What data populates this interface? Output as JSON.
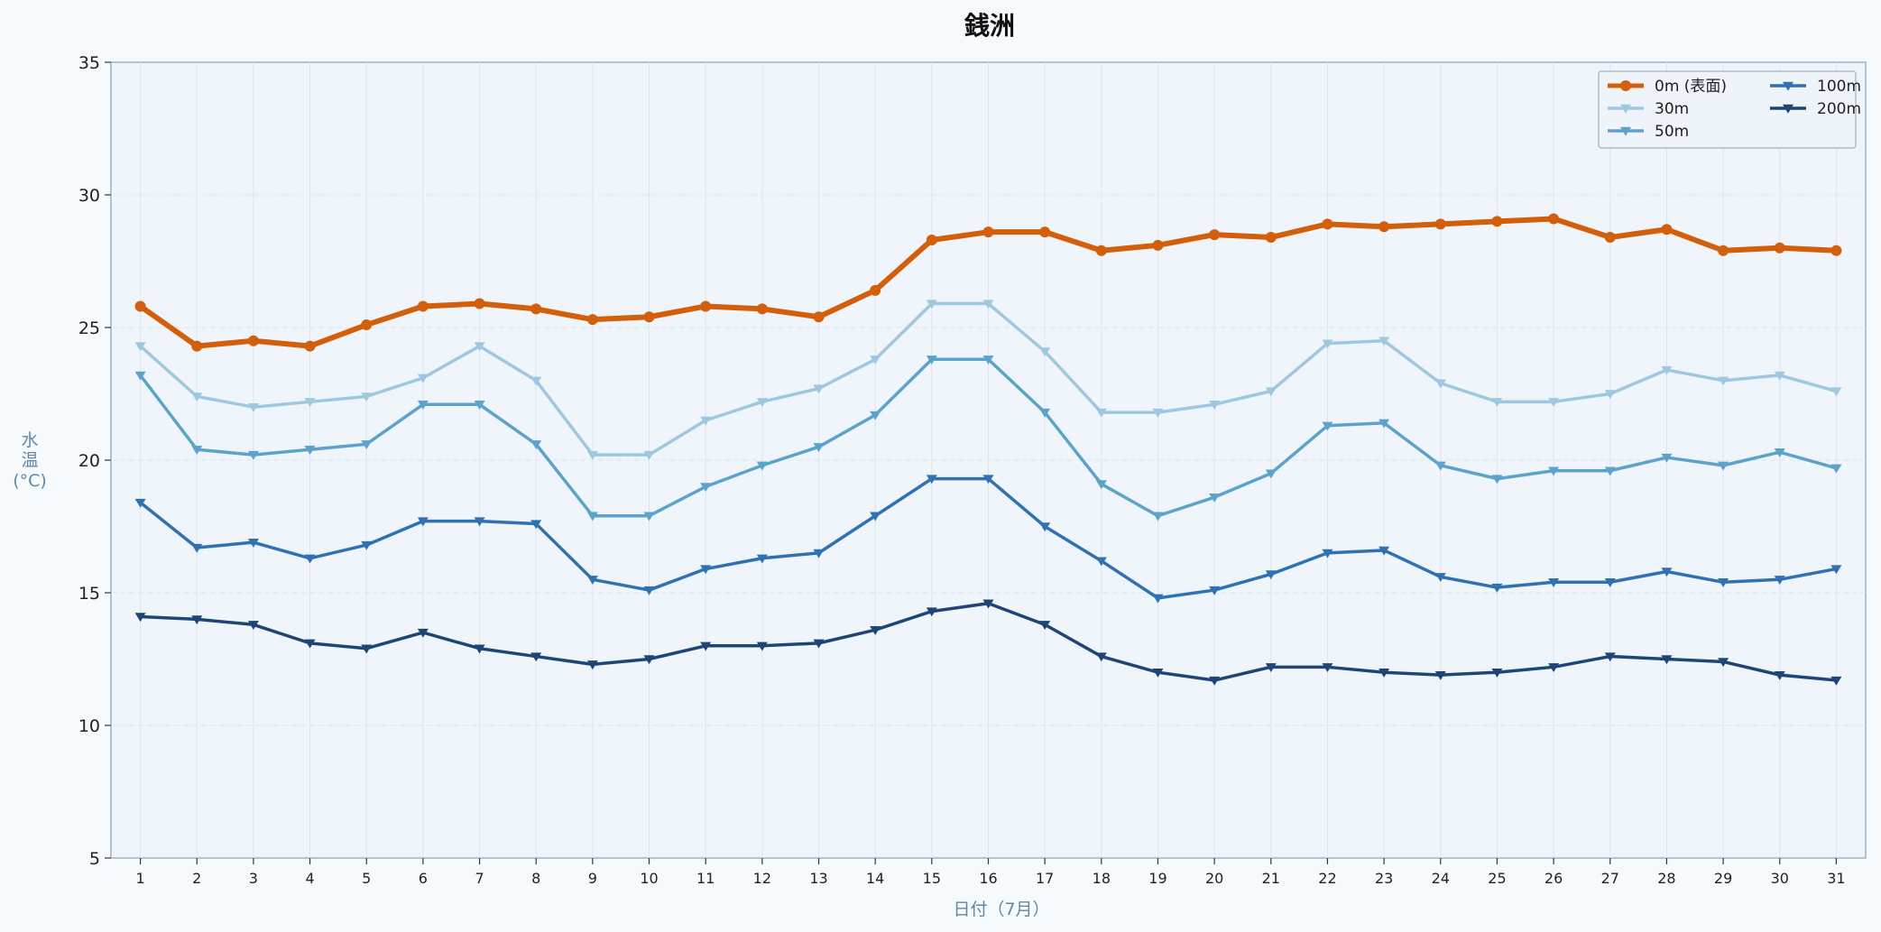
{
  "chart_data": {
    "type": "line",
    "title": "銭洲",
    "xlabel": "日付（7月）",
    "ylabel_lines": [
      "水",
      "温",
      "(°C)"
    ],
    "ylim": [
      5,
      35
    ],
    "yticks": [
      5,
      10,
      15,
      20,
      25,
      30,
      35
    ],
    "x": [
      1,
      2,
      3,
      4,
      5,
      6,
      7,
      8,
      9,
      10,
      11,
      12,
      13,
      14,
      15,
      16,
      17,
      18,
      19,
      20,
      21,
      22,
      23,
      24,
      25,
      26,
      27,
      28,
      29,
      30,
      31
    ],
    "grid": true,
    "legend_position": "top-right",
    "series": [
      {
        "name": "0m (表面)",
        "color": "#d35f0a",
        "marker": "circle",
        "values": [
          25.8,
          24.3,
          24.5,
          24.3,
          25.1,
          25.8,
          25.9,
          25.7,
          25.3,
          25.4,
          25.8,
          25.7,
          25.4,
          26.4,
          28.3,
          28.6,
          28.6,
          27.9,
          28.1,
          28.5,
          28.4,
          28.9,
          28.8,
          28.9,
          29.0,
          29.1,
          28.4,
          28.7,
          27.9,
          28.0,
          27.9
        ]
      },
      {
        "name": "30m",
        "color": "#9ec8e0",
        "marker": "triangle-down",
        "values": [
          24.3,
          22.4,
          22.0,
          22.2,
          22.4,
          23.1,
          24.3,
          23.0,
          20.2,
          20.2,
          21.5,
          22.2,
          22.7,
          23.8,
          25.9,
          25.9,
          24.1,
          21.8,
          21.8,
          22.1,
          22.6,
          24.4,
          24.5,
          22.9,
          22.2,
          22.2,
          22.5,
          23.4,
          23.0,
          23.2,
          22.6
        ]
      },
      {
        "name": "50m",
        "color": "#5ba3cb",
        "marker": "triangle-down",
        "values": [
          23.2,
          20.4,
          20.2,
          20.4,
          20.6,
          22.1,
          22.1,
          20.6,
          17.9,
          17.9,
          19.0,
          19.8,
          20.5,
          21.7,
          23.8,
          23.8,
          21.8,
          19.1,
          17.9,
          18.6,
          19.5,
          21.3,
          21.4,
          19.8,
          19.3,
          19.6,
          19.6,
          20.1,
          19.8,
          20.3,
          19.7
        ]
      },
      {
        "name": "100m",
        "color": "#2e72b4",
        "marker": "triangle-down",
        "values": [
          18.4,
          16.7,
          16.9,
          16.3,
          16.8,
          17.7,
          17.7,
          17.6,
          15.5,
          15.1,
          15.9,
          16.3,
          16.5,
          17.9,
          19.3,
          19.3,
          17.5,
          16.2,
          14.8,
          15.1,
          15.7,
          16.5,
          16.6,
          15.6,
          15.2,
          15.4,
          15.4,
          15.8,
          15.4,
          15.5,
          15.9
        ]
      },
      {
        "name": "200m",
        "color": "#1d4677",
        "marker": "triangle-down",
        "values": [
          14.1,
          14.0,
          13.8,
          13.1,
          12.9,
          13.5,
          12.9,
          12.6,
          12.3,
          12.5,
          13.0,
          13.0,
          13.1,
          13.6,
          14.3,
          14.6,
          13.8,
          12.6,
          12.0,
          11.7,
          12.2,
          12.2,
          12.0,
          11.9,
          12.0,
          12.2,
          12.6,
          12.5,
          12.4,
          11.9,
          11.7
        ]
      }
    ]
  }
}
